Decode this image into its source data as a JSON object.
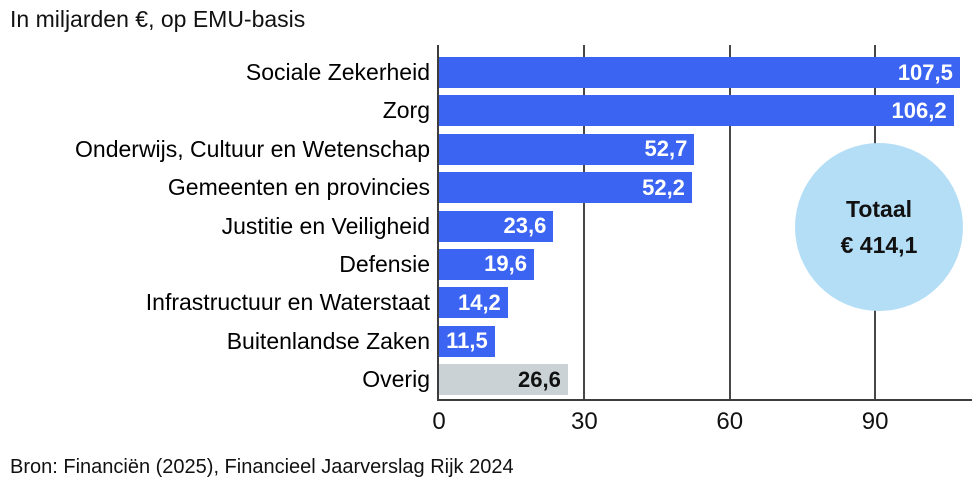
{
  "title": "In miljarden €, op EMU-basis",
  "source": "Bron: Financiën (2025), Financieel Jaarverslag Rijk 2024",
  "total_badge": {
    "label": "Totaal",
    "value": "€ 414,1"
  },
  "colors": {
    "bar": "#3b64f2",
    "bar_muted": "#cbd2d5",
    "value_label": "#ffffff",
    "value_label_muted": "#111111",
    "total_circle": "#b4def6",
    "axis": "#3d3d3d",
    "gridline": "#474747",
    "text": "#111111"
  },
  "chart_data": {
    "type": "bar",
    "orientation": "horizontal",
    "title": "In miljarden €, op EMU-basis",
    "unit": "miljarden €, EMU-basis",
    "categories": [
      "Sociale Zekerheid",
      "Zorg",
      "Onderwijs, Cultuur en Wetenschap",
      "Gemeenten en provincies",
      "Justitie en Veiligheid",
      "Defensie",
      "Infrastructuur en Waterstaat",
      "Buitenlandse Zaken",
      "Overig"
    ],
    "values": [
      107.5,
      106.2,
      52.7,
      52.2,
      23.6,
      19.6,
      14.2,
      11.5,
      26.6
    ],
    "value_labels": [
      "107,5",
      "106,2",
      "52,7",
      "52,2",
      "23,6",
      "19,6",
      "14,2",
      "11,5",
      "26,6"
    ],
    "muted_index": 8,
    "total": 414.1,
    "total_label": "Totaal € 414,1",
    "xlim": [
      0,
      110
    ],
    "xticks": [
      0,
      30,
      60,
      90
    ],
    "grid": true,
    "legend": "none"
  }
}
